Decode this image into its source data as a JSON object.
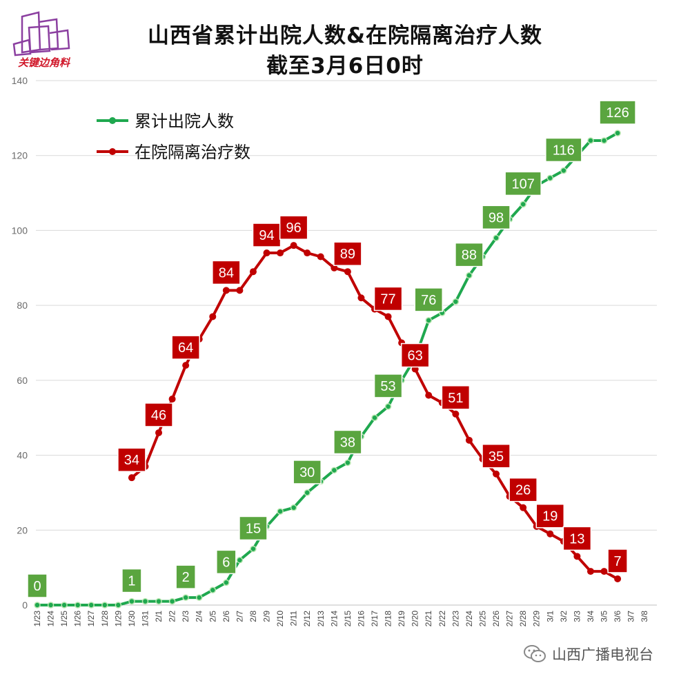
{
  "header": {
    "title_line1": "山西省累计出院人数&在院隔离治疗人数",
    "title_line2": "截至3月6日0时",
    "logo_text": "关键边角料"
  },
  "footer": {
    "watermark": "山西广播电视台"
  },
  "chart_data": {
    "type": "line",
    "title": "山西省累计出院人数&在院隔离治疗人数 截至3月6日0时",
    "xlabel": "",
    "ylabel": "",
    "ylim": [
      0,
      140
    ],
    "yticks": [
      0,
      20,
      40,
      60,
      80,
      100,
      120,
      140
    ],
    "grid": true,
    "legend": "top-left",
    "categories": [
      "1/23",
      "1/24",
      "1/25",
      "1/26",
      "1/27",
      "1/28",
      "1/29",
      "1/30",
      "1/31",
      "2/1",
      "2/2",
      "2/3",
      "2/4",
      "2/5",
      "2/6",
      "2/7",
      "2/8",
      "2/9",
      "2/10",
      "2/11",
      "2/12",
      "2/13",
      "2/14",
      "2/15",
      "2/16",
      "2/17",
      "2/18",
      "2/19",
      "2/20",
      "2/21",
      "2/22",
      "2/23",
      "2/24",
      "2/25",
      "2/26",
      "2/27",
      "2/28",
      "2/29",
      "3/1",
      "3/2",
      "3/3",
      "3/4",
      "3/5",
      "3/6",
      "3/7",
      "3/8"
    ],
    "series": [
      {
        "name": "累计出院人数",
        "color": "#1fa84f",
        "label_color": "#5aa53f",
        "values": [
          0,
          0,
          0,
          0,
          0,
          0,
          0,
          1,
          1,
          1,
          1,
          2,
          2,
          4,
          6,
          12,
          15,
          21,
          25,
          26,
          30,
          33,
          36,
          38,
          45,
          50,
          53,
          60,
          66,
          76,
          78,
          81,
          88,
          93,
          98,
          103,
          107,
          112,
          114,
          116,
          120,
          124,
          124,
          126,
          null,
          null
        ],
        "labels": [
          {
            "i": 0,
            "text": "0"
          },
          {
            "i": 7,
            "text": "1"
          },
          {
            "i": 11,
            "text": "2"
          },
          {
            "i": 14,
            "text": "6"
          },
          {
            "i": 16,
            "text": "15"
          },
          {
            "i": 20,
            "text": "30"
          },
          {
            "i": 23,
            "text": "38"
          },
          {
            "i": 26,
            "text": "53"
          },
          {
            "i": 29,
            "text": "76"
          },
          {
            "i": 32,
            "text": "88"
          },
          {
            "i": 34,
            "text": "98"
          },
          {
            "i": 36,
            "text": "107"
          },
          {
            "i": 39,
            "text": "116"
          },
          {
            "i": 43,
            "text": "126"
          }
        ]
      },
      {
        "name": "在院隔离治疗数",
        "color": "#c00000",
        "label_color": "#c00000",
        "values": [
          null,
          null,
          null,
          null,
          null,
          null,
          null,
          34,
          37,
          46,
          55,
          64,
          71,
          77,
          84,
          84,
          89,
          94,
          94,
          96,
          94,
          93,
          90,
          89,
          82,
          79,
          77,
          70,
          63,
          56,
          54,
          51,
          44,
          39,
          35,
          29,
          26,
          21,
          19,
          17,
          13,
          9,
          9,
          7,
          null,
          null
        ],
        "labels": [
          {
            "i": 7,
            "text": "34"
          },
          {
            "i": 9,
            "text": "46"
          },
          {
            "i": 11,
            "text": "64"
          },
          {
            "i": 14,
            "text": "84"
          },
          {
            "i": 17,
            "text": "94"
          },
          {
            "i": 19,
            "text": "96"
          },
          {
            "i": 23,
            "text": "89"
          },
          {
            "i": 26,
            "text": "77"
          },
          {
            "i": 28,
            "text": "63"
          },
          {
            "i": 31,
            "text": "51"
          },
          {
            "i": 34,
            "text": "35"
          },
          {
            "i": 36,
            "text": "26"
          },
          {
            "i": 38,
            "text": "19"
          },
          {
            "i": 40,
            "text": "13"
          },
          {
            "i": 43,
            "text": "7"
          }
        ]
      }
    ]
  }
}
